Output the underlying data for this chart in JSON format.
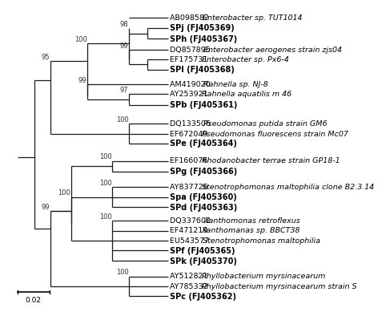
{
  "scale_bar_label": "0.02",
  "background_color": "#ffffff",
  "line_color": "#1a1a1a",
  "labels": [
    {
      "key": "AB098582",
      "text": "AB098582",
      "italic": "Enterobacter sp. TUT1014",
      "bold": false
    },
    {
      "key": "SPj",
      "text": "SPj (FJ405369)",
      "italic": "",
      "bold": true
    },
    {
      "key": "SPh",
      "text": "SPh (FJ405367)",
      "italic": "",
      "bold": true
    },
    {
      "key": "DQ857896",
      "text": "DQ857896",
      "italic": "Enterobacter aerogenes strain zjs04",
      "bold": false
    },
    {
      "key": "EF175731",
      "text": "EF175731",
      "italic": "Enterobacter sp. Px6-4",
      "bold": false
    },
    {
      "key": "SPl",
      "text": "SPl (FJ405368)",
      "italic": "",
      "bold": true
    },
    {
      "key": "AM419020",
      "text": "AM419020",
      "italic": "Rahnella sp. NJ-8",
      "bold": false
    },
    {
      "key": "AY253921",
      "text": "AY253921",
      "italic": "Rahnella aquatilis m 46",
      "bold": false
    },
    {
      "key": "SPb",
      "text": "SPb (FJ405361)",
      "italic": "",
      "bold": true
    },
    {
      "key": "DQ133506",
      "text": "DQ133506",
      "italic": "Pseudomonas putida strain GM6",
      "bold": false
    },
    {
      "key": "EF672049",
      "text": "EF672049",
      "italic": "Pseudomonas fluorescens strain Mc07",
      "bold": false
    },
    {
      "key": "SPe",
      "text": "SPe (FJ405364)",
      "italic": "",
      "bold": true
    },
    {
      "key": "EF166076",
      "text": "EF166076",
      "italic": "Rhodanobacter terrae strain GP18-1",
      "bold": false
    },
    {
      "key": "SPg",
      "text": "SPg (FJ405366)",
      "italic": "",
      "bold": true
    },
    {
      "key": "AY837726",
      "text": "AY837726",
      "italic": "Stenotrophomonas maltophilia clone B2.3.14",
      "bold": false
    },
    {
      "key": "Spa",
      "text": "Spa (FJ405360)",
      "italic": "",
      "bold": true
    },
    {
      "key": "SPd",
      "text": "SPd (FJ405363)",
      "italic": "",
      "bold": true
    },
    {
      "key": "DQ337602",
      "text": "DQ337602",
      "italic": "Xanthomonas retroflexus",
      "bold": false
    },
    {
      "key": "EF471219",
      "text": "EF471219",
      "italic": "Xanthomanas sp. BBCT38",
      "bold": false
    },
    {
      "key": "EU543577",
      "text": "EU543577",
      "italic": "Stenotrophomonas maltophilia",
      "bold": false
    },
    {
      "key": "SPf",
      "text": "SPf (FJ405365)",
      "italic": "",
      "bold": true
    },
    {
      "key": "SPk",
      "text": "SPk (FJ405370)",
      "italic": "",
      "bold": true
    },
    {
      "key": "AY512821",
      "text": "AY512821",
      "italic": "Phyllobacterium myrsinacearum",
      "bold": false
    },
    {
      "key": "AY785332",
      "text": "AY785332",
      "italic": "Phyllobacterium myrsinacearum strain S",
      "bold": false
    },
    {
      "key": "SPc",
      "text": "SPc (FJ405362)",
      "italic": "",
      "bold": true
    }
  ]
}
